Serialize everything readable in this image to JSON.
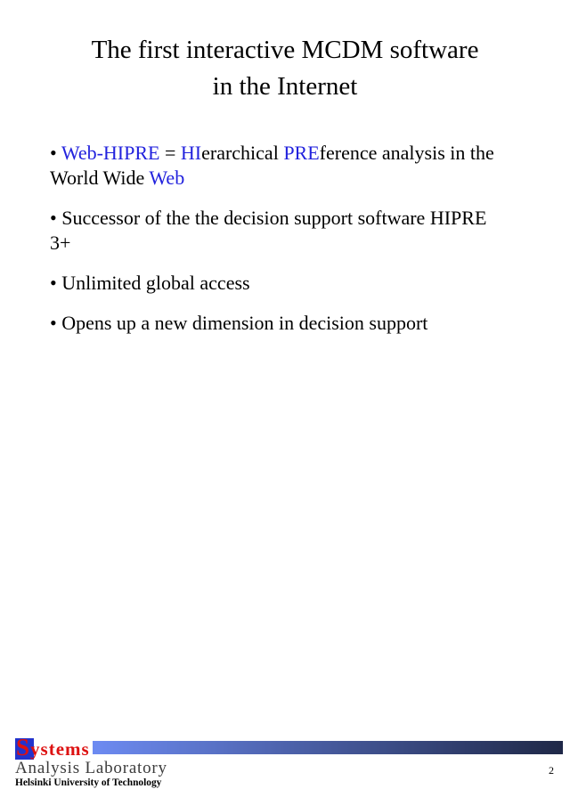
{
  "slide": {
    "title_line1": "The first interactive MCDM software",
    "title_line2": "in the Internet",
    "bullets": [
      {
        "segments": [
          {
            "text": "• ",
            "color": "#000000"
          },
          {
            "text": "Web-HIPRE",
            "color": "#2222dd"
          },
          {
            "text": " = ",
            "color": "#000000"
          },
          {
            "text": "HI",
            "color": "#2222dd"
          },
          {
            "text": "erarchical ",
            "color": "#000000"
          },
          {
            "text": "PRE",
            "color": "#2222dd"
          },
          {
            "text": "ference analysis in the World Wide ",
            "color": "#000000"
          },
          {
            "text": "Web",
            "color": "#2222dd"
          }
        ]
      },
      {
        "segments": [
          {
            "text": "• Successor of the the decision support software HIPRE 3+",
            "color": "#000000"
          }
        ]
      },
      {
        "segments": [
          {
            "text": "• Unlimited global access",
            "color": "#000000"
          }
        ]
      },
      {
        "segments": [
          {
            "text": "• Opens up a new dimension in decision support",
            "color": "#000000"
          }
        ]
      }
    ],
    "footer": {
      "logo_word": "Systems",
      "lab_name": "Analysis Laboratory",
      "university_name": "Helsinki University of Technology",
      "page_number": "2"
    },
    "colors": {
      "link_blue": "#2222dd",
      "logo_red": "#dd1111",
      "logo_square_blue": "#2233cc",
      "bar_gradient_left": "#6d8bf2",
      "bar_gradient_right": "#1f2847",
      "lab_name_gray": "#3c3c3c"
    }
  }
}
